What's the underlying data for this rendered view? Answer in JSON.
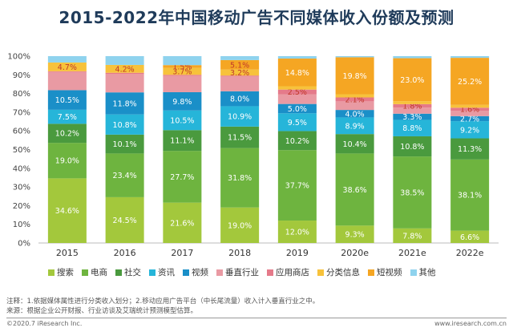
{
  "title": "2015-2022年中国移动广告不同媒体收入份额及预测",
  "notes": {
    "line1": "注释：1.依据媒体属性进行分类收入划分；2.移动应用广告平台（中长尾流量）收入计入垂直行业之中。",
    "line2": "来源：根据企业公开财报、行业访谈及艾瑞统计预测模型估算。"
  },
  "footer": {
    "left": "©2020.7 iResearch Inc.",
    "right": "www.iresearch.com.cn"
  },
  "chart_data": {
    "type": "bar",
    "stacked": true,
    "percent": true,
    "title": "2015-2022年中国移动广告不同媒体收入份额及预测",
    "categories": [
      "2015",
      "2016",
      "2017",
      "2018",
      "2019",
      "2020e",
      "2021e",
      "2022e"
    ],
    "ylim": [
      0,
      100
    ],
    "yticks": [
      "0%",
      "10%",
      "20%",
      "30%",
      "40%",
      "50%",
      "60%",
      "70%",
      "80%",
      "90%",
      "100%"
    ],
    "legend_position": "bottom",
    "series": [
      {
        "name": "搜索",
        "color": "#a3c83c",
        "values": [
          34.6,
          24.5,
          21.6,
          19.0,
          12.0,
          9.3,
          7.8,
          6.6
        ],
        "labels": [
          "34.6%",
          "24.5%",
          "21.6%",
          "19.0%",
          "12.0%",
          "9.3%",
          "7.8%",
          "6.6%"
        ]
      },
      {
        "name": "电商",
        "color": "#6eb43f",
        "values": [
          19.0,
          23.4,
          27.7,
          31.8,
          37.7,
          38.6,
          38.5,
          38.1
        ],
        "labels": [
          "19.0%",
          "23.4%",
          "27.7%",
          "31.8%",
          "37.7%",
          "38.6%",
          "38.5%",
          "38.1%"
        ]
      },
      {
        "name": "社交",
        "color": "#4a9a3e",
        "values": [
          10.2,
          10.1,
          11.1,
          11.5,
          10.2,
          10.4,
          10.8,
          11.3
        ],
        "labels": [
          "10.2%",
          "10.1%",
          "11.1%",
          "11.5%",
          "10.2%",
          "10.4%",
          "10.8%",
          "11.3%"
        ]
      },
      {
        "name": "资讯",
        "color": "#26b5d9",
        "values": [
          7.5,
          10.8,
          10.5,
          10.9,
          9.5,
          8.9,
          8.8,
          9.2
        ],
        "labels": [
          "7.5%",
          "10.8%",
          "10.5%",
          "10.9%",
          "9.5%",
          "8.9%",
          "8.8%",
          "9.2%"
        ]
      },
      {
        "name": "视频",
        "color": "#1a8fc8",
        "values": [
          10.5,
          11.8,
          9.8,
          8.0,
          5.0,
          4.0,
          3.3,
          2.7
        ],
        "labels": [
          "10.5%",
          "11.8%",
          "9.8%",
          "8.0%",
          "5.0%",
          "4.0%",
          "3.3%",
          "2.7%"
        ]
      },
      {
        "name": "垂直行业",
        "color": "#e99aa3",
        "values": [
          9.7,
          9.8,
          8.8,
          7.9,
          5.2,
          4.6,
          3.3,
          2.9
        ],
        "labels": [
          "",
          "",
          "",
          "",
          "",
          "",
          "",
          ""
        ]
      },
      {
        "name": "应用商店",
        "color": "#e57a8a",
        "values": [
          0.4,
          0.7,
          0.5,
          0.5,
          2.5,
          2.1,
          1.8,
          1.6
        ],
        "labels": [
          "",
          "",
          "",
          "",
          "2.5%",
          "2.1%",
          "1.8%",
          "1.6%"
        ]
      },
      {
        "name": "分类信息",
        "color": "#f7c23b",
        "values": [
          4.7,
          4.2,
          3.7,
          3.2,
          1.8,
          1.7,
          1.6,
          1.5
        ],
        "labels": [
          "4.7%",
          "4.2%",
          "3.7%",
          "3.2%",
          "",
          "",
          "",
          ""
        ]
      },
      {
        "name": "短视频",
        "color": "#f5a623",
        "values": [
          0.0,
          0.0,
          1.5,
          5.1,
          14.8,
          19.8,
          23.0,
          25.2
        ],
        "labels": [
          "",
          "",
          "1.5%",
          "5.1%",
          "14.8%",
          "19.8%",
          "23.0%",
          "25.2%"
        ]
      },
      {
        "name": "其他",
        "color": "#8fd3ee",
        "values": [
          3.4,
          4.7,
          4.8,
          2.1,
          1.3,
          0.6,
          1.1,
          0.9
        ],
        "labels": [
          "",
          "",
          "",
          "",
          "",
          "",
          "",
          ""
        ]
      }
    ]
  }
}
